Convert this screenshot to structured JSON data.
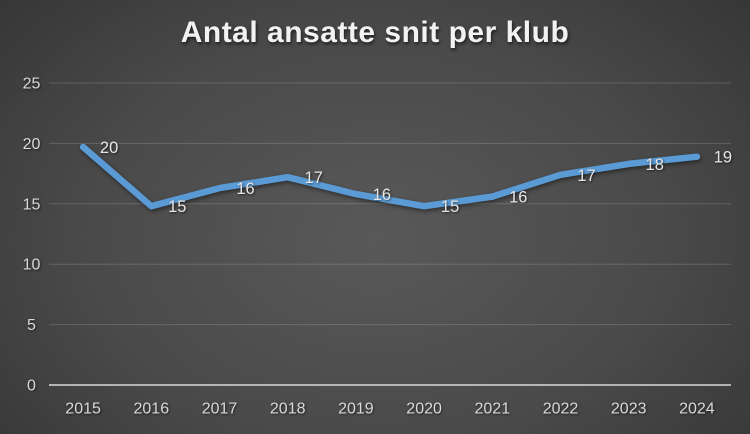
{
  "chart_data": {
    "type": "line",
    "title": "Antal ansatte snit per klub",
    "categories": [
      "2015",
      "2016",
      "2017",
      "2018",
      "2019",
      "2020",
      "2021",
      "2022",
      "2023",
      "2024"
    ],
    "values": [
      20,
      15,
      16,
      17,
      16,
      15,
      16,
      17,
      18,
      19
    ],
    "values_precise": [
      19.7,
      14.8,
      16.3,
      17.2,
      15.8,
      14.8,
      15.6,
      17.4,
      18.3,
      18.9
    ],
    "y_ticks": [
      0,
      5,
      10,
      15,
      20,
      25
    ],
    "ylim": [
      0,
      25
    ],
    "xlabel": "",
    "ylabel": "",
    "grid": true,
    "legend": false,
    "data_label_position": "right",
    "colors": {
      "line": "#5B9BD5",
      "title_text": "#f2f2f2",
      "tick_text": "#d9d9d9",
      "data_label_text": "#e6e6e6",
      "axis_line": "#d9d9d9",
      "gridline": "rgba(255,255,255,0.16)",
      "background_center": "#595959",
      "background_edge": "#262626"
    }
  }
}
